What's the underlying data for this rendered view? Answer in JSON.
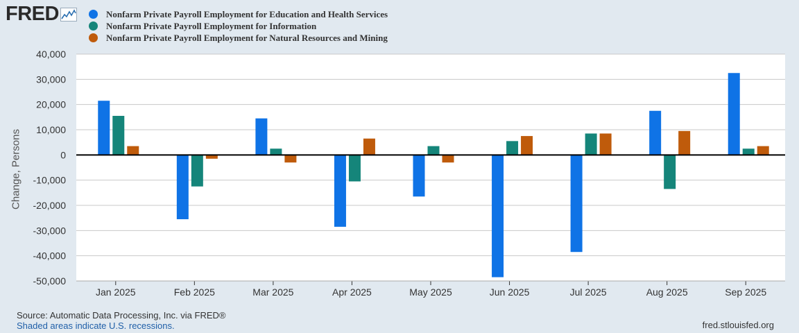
{
  "logo": {
    "text": "FRED",
    "icon": "fred-chart-icon"
  },
  "colors": {
    "education_health": "#0f73e6",
    "information": "#15857a",
    "natural_resources": "#bf5b0b",
    "background": "#e1e9f0",
    "plot_bg": "#ffffff",
    "gridline": "#c8c8c8",
    "zero_line": "#000000"
  },
  "chart_data": {
    "type": "bar",
    "title": "",
    "xlabel": "",
    "ylabel": "Change, Persons",
    "ylim": [
      -50000,
      40000
    ],
    "yticks": [
      -50000,
      -40000,
      -30000,
      -20000,
      -10000,
      0,
      10000,
      20000,
      30000,
      40000
    ],
    "ytick_labels": [
      "-50,000",
      "-40,000",
      "-30,000",
      "-20,000",
      "-10,000",
      "0",
      "10,000",
      "20,000",
      "30,000",
      "40,000"
    ],
    "grid": true,
    "legend": "top-left",
    "categories": [
      "Jan 2025",
      "Feb 2025",
      "Mar 2025",
      "Apr 2025",
      "May 2025",
      "Jun 2025",
      "Jul 2025",
      "Aug 2025",
      "Sep 2025"
    ],
    "series": [
      {
        "name": "Nonfarm Private Payroll Employment for Education and Health Services",
        "values": [
          21500,
          -25500,
          14500,
          -28500,
          -16500,
          -48500,
          -38500,
          17500,
          32500
        ]
      },
      {
        "name": "Nonfarm Private Payroll Employment for Information",
        "values": [
          15500,
          -12500,
          2500,
          -10500,
          3500,
          5500,
          8500,
          -13500,
          2500
        ]
      },
      {
        "name": "Nonfarm Private Payroll Employment for Natural Resources and Mining",
        "values": [
          3500,
          -1500,
          -3000,
          6500,
          -3000,
          7500,
          8500,
          9500,
          3500
        ]
      }
    ]
  },
  "footer": {
    "source": "Source: Automatic Data Processing, Inc. via FRED®",
    "recession_note": "Shaded areas indicate U.S. recessions.",
    "site": "fred.stlouisfed.org"
  }
}
